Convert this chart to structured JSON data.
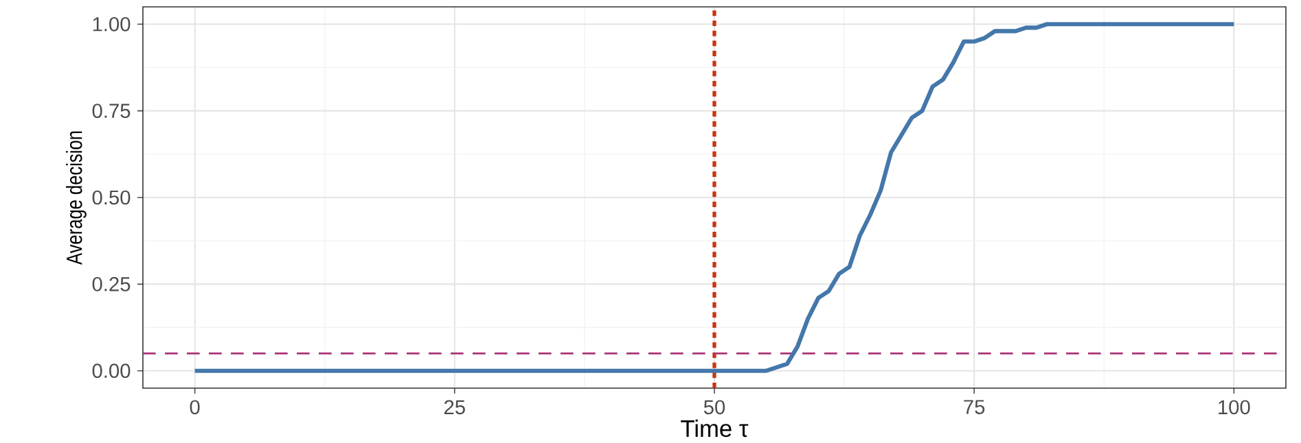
{
  "chart_data": {
    "type": "line",
    "xlabel": "Time τ",
    "ylabel": "Average decision",
    "x": [
      0,
      55,
      56,
      57,
      58,
      59,
      60,
      61,
      62,
      63,
      64,
      65,
      66,
      67,
      68,
      69,
      70,
      71,
      72,
      73,
      74,
      75,
      76,
      77,
      78,
      79,
      80,
      81,
      82,
      100
    ],
    "series": [
      {
        "color": "#4477aa",
        "values": [
          0,
          0,
          0.01,
          0.02,
          0.07,
          0.15,
          0.21,
          0.23,
          0.28,
          0.3,
          0.39,
          0.45,
          0.52,
          0.63,
          0.68,
          0.73,
          0.75,
          0.82,
          0.84,
          0.89,
          0.95,
          0.95,
          0.96,
          0.98,
          0.98,
          0.98,
          0.99,
          0.99,
          1,
          1
        ]
      }
    ],
    "xlim": [
      -5,
      105
    ],
    "xticks": [
      0,
      25,
      50,
      75,
      100
    ],
    "ylim": [
      -0.05,
      1.05
    ],
    "yticks": [
      {
        "value": 0,
        "label": "0.00"
      },
      {
        "value": 0.25,
        "label": "0.25"
      },
      {
        "value": 0.5,
        "label": "0.50"
      },
      {
        "value": 0.75,
        "label": "0.75"
      },
      {
        "value": 1,
        "label": "1.00"
      }
    ],
    "ref_lines": [
      {
        "axis": "x",
        "value": 50,
        "color": "#cc3311",
        "line_style": "dotted"
      },
      {
        "axis": "y",
        "value": 0.05,
        "color": "#aa3377",
        "line_style": "dashed"
      }
    ],
    "grid": true,
    "line_style": "solid",
    "marker": "none"
  }
}
